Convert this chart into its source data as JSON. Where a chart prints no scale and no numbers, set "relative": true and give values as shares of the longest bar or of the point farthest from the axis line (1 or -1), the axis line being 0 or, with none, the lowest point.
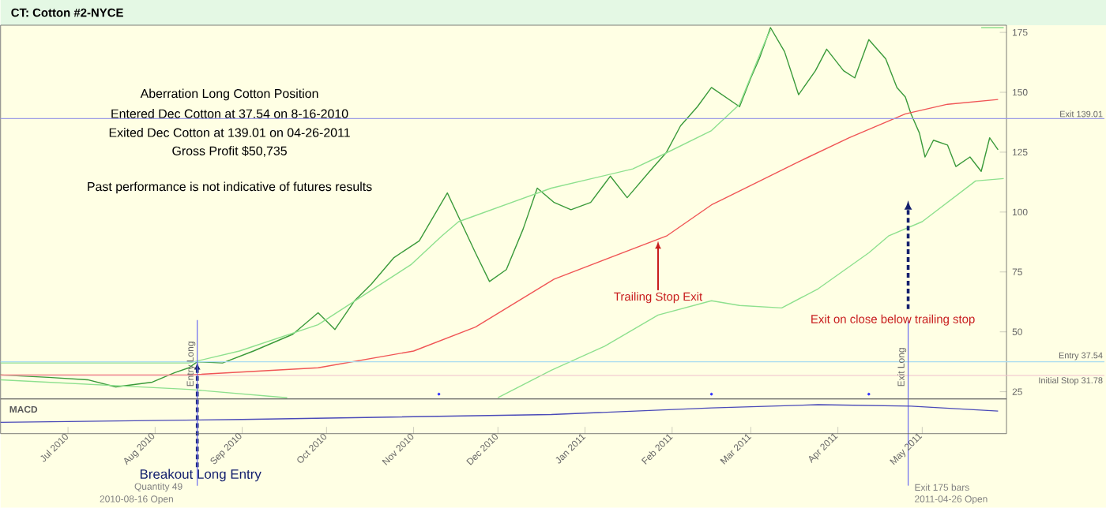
{
  "chart_data": [
    {
      "type": "line",
      "title": "CT: Cotton #2-NYCE",
      "xlim": [
        "2010-06-07",
        "2011-05-31"
      ],
      "ylim": [
        22,
        178
      ],
      "yticks": [
        25,
        50,
        75,
        100,
        125,
        150,
        175
      ],
      "tick_labels": "y",
      "series": [
        {
          "color": "#3a9a3a",
          "x": [
            "2010-06-07",
            "2010-06-24",
            "2010-07-08",
            "2010-07-18",
            "2010-07-31",
            "2010-08-08",
            "2010-08-13",
            "2010-08-16",
            "2010-08-25",
            "2010-09-05",
            "2010-09-19",
            "2010-09-28",
            "2010-10-04",
            "2010-10-11",
            "2010-10-17",
            "2010-10-25",
            "2010-11-03",
            "2010-11-13",
            "2010-11-23",
            "2010-11-28",
            "2010-12-04",
            "2010-12-10",
            "2010-12-15",
            "2010-12-21",
            "2010-12-27",
            "2011-01-03",
            "2011-01-10",
            "2011-01-16",
            "2011-01-24",
            "2011-01-30",
            "2011-02-04",
            "2011-02-10",
            "2011-02-15",
            "2011-02-25",
            "2011-03-01",
            "2011-03-04",
            "2011-03-08",
            "2011-03-13",
            "2011-03-18",
            "2011-03-24",
            "2011-03-28",
            "2011-04-03",
            "2011-04-07",
            "2011-04-12",
            "2011-04-18",
            "2011-04-22",
            "2011-04-25",
            "2011-04-27",
            "2011-04-30",
            "2011-05-02",
            "2011-05-05",
            "2011-05-10",
            "2011-05-13",
            "2011-05-18",
            "2011-05-22",
            "2011-05-25",
            "2011-05-28"
          ],
          "values": [
            32,
            31,
            30,
            27,
            29,
            33,
            35,
            37.5,
            37,
            42,
            49,
            58,
            51,
            63,
            70,
            81,
            88,
            108,
            83,
            71,
            76,
            93,
            110,
            104,
            101,
            104,
            115,
            106,
            117,
            125,
            136,
            144,
            152,
            144,
            156,
            164,
            177,
            167,
            149,
            159,
            168,
            159,
            156,
            172,
            164,
            152,
            148,
            141,
            133,
            123,
            130,
            128,
            119,
            123,
            117,
            131,
            126
          ]
        },
        {
          "color": "#f05555",
          "x": [
            "2010-06-07",
            "2010-08-13",
            "2010-09-28",
            "2010-11-01",
            "2010-11-23",
            "2010-12-21",
            "2011-01-30",
            "2011-02-15",
            "2011-03-18",
            "2011-04-05",
            "2011-04-25",
            "2011-05-10",
            "2011-05-28"
          ],
          "values": [
            32,
            32,
            35,
            42,
            52,
            72,
            90,
            103,
            121,
            131,
            141,
            145,
            147
          ]
        },
        {
          "color": "#8ee08e",
          "x": [
            "2010-06-07",
            "2010-08-13",
            "2010-08-31",
            "2010-09-28",
            "2010-10-31",
            "2010-11-11",
            "2010-11-17",
            "2010-12-20",
            "2011-01-18",
            "2011-01-27",
            "2011-02-15",
            "2011-02-25",
            "2011-03-06",
            "2011-03-08",
            "2011-04-15",
            "2011-05-22",
            "2011-05-30"
          ],
          "values": [
            37,
            37,
            42,
            53,
            78,
            90,
            96,
            110,
            118,
            123,
            134,
            145,
            171,
            176,
            null,
            177,
            177
          ]
        },
        {
          "color": "#8ee08e",
          "x": [
            "2010-06-07",
            "2010-08-13",
            "2010-09-17",
            "2010-10-20",
            "2010-12-01",
            "2010-12-20",
            "2011-01-08",
            "2011-01-27",
            "2011-02-15",
            "2011-02-25",
            "2011-03-12",
            "2011-03-25",
            "2011-04-12",
            "2011-04-19",
            "2011-05-01",
            "2011-05-20",
            "2011-05-30"
          ],
          "values": [
            30,
            26,
            22.5,
            null,
            22.5,
            34,
            44,
            57,
            63,
            61,
            60,
            68,
            83,
            90,
            96,
            113,
            114
          ]
        },
        {
          "type": "scatter",
          "color": "#3333ff",
          "x": [
            "2010-11-10",
            "2011-02-15",
            "2011-04-12"
          ],
          "values": [
            24,
            24,
            24
          ]
        }
      ],
      "ref_lines": [
        {
          "axis": "y",
          "value": 37.54,
          "label": "Entry 37.54",
          "color": "#a8dcf0"
        },
        {
          "axis": "y",
          "value": 31.78,
          "label": "Initial Stop 31.78",
          "color": "#f0c0cc"
        },
        {
          "axis": "y",
          "value": 139.01,
          "label": "Exit 139.01",
          "color": "#9a9ae6"
        },
        {
          "axis": "x",
          "value": "2010-08-16",
          "label": "Entry Long",
          "color": "#6a6af0"
        },
        {
          "axis": "x",
          "value": "2011-04-26",
          "label": "Exit Long",
          "color": "#6a6af0"
        }
      ],
      "annotations": [
        "Aberration Long Cotton Position",
        "Entered Dec Cotton at 37.54 on 8-16-2010",
        "Exited Dec Cotton at 139.01 on 04-26-2011",
        "Gross Profit $50,735",
        "Past performance is not indicative of futures results",
        {
          "text": "Breakout Long Entry",
          "x": "2010-08-16",
          "y": 37.54
        },
        "Quantity 49",
        "2010-08-16 Open",
        {
          "text": "Trailing Stop Exit",
          "x": "2011-01-27",
          "y": 88
        },
        "Exit on close below trailing stop",
        "Exit 175 bars",
        "2011-04-26 Open"
      ]
    },
    {
      "type": "line",
      "title": "MACD",
      "relative": true,
      "tick_labels": "x",
      "xlim": [
        "2010-06-07",
        "2011-05-31"
      ],
      "xticks": [
        {
          "value": "2010-07-01",
          "label": "Jul 2010"
        },
        {
          "value": "2010-08-01",
          "label": "Aug 2010"
        },
        {
          "value": "2010-09-01",
          "label": "Sep 2010"
        },
        {
          "value": "2010-10-01",
          "label": "Oct 2010"
        },
        {
          "value": "2010-11-01",
          "label": "Nov 2010"
        },
        {
          "value": "2010-12-01",
          "label": "Dec 2010"
        },
        {
          "value": "2011-01-01",
          "label": "Jan 2011"
        },
        {
          "value": "2011-02-01",
          "label": "Feb 2011"
        },
        {
          "value": "2011-03-01",
          "label": "Mar 2011"
        },
        {
          "value": "2011-04-01",
          "label": "Apr 2011"
        },
        {
          "value": "2011-05-01",
          "label": "May 2011"
        }
      ],
      "series": [
        {
          "color": "#4a4ab8",
          "x": [
            "2010-06-07",
            "2010-09-01",
            "2010-12-20",
            "2011-02-15",
            "2011-03-25",
            "2011-04-27",
            "2011-05-28"
          ],
          "values": [
            0.39,
            0.49,
            0.66,
            0.89,
            1,
            0.95,
            0.78
          ]
        }
      ]
    }
  ]
}
